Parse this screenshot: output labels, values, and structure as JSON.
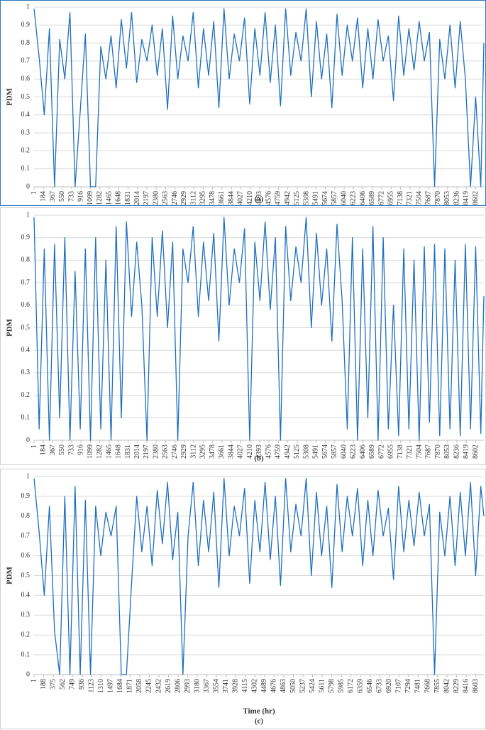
{
  "chart_data": [
    {
      "type": "line",
      "caption": "(a)",
      "ylabel": "PDM",
      "color": "#1f6fbf",
      "x": [
        1,
        100,
        200,
        300,
        400,
        500,
        600,
        700,
        800,
        900,
        1000,
        1100,
        1200,
        1300,
        1400,
        1500,
        1600,
        1700,
        1800,
        1900,
        2000,
        2100,
        2200,
        2300,
        2400,
        2500,
        2600,
        2700,
        2800,
        2900,
        3000,
        3100,
        3200,
        3300,
        3400,
        3500,
        3600,
        3700,
        3800,
        3900,
        4000,
        4100,
        4200,
        4300,
        4400,
        4500,
        4600,
        4700,
        4800,
        4900,
        5000,
        5100,
        5200,
        5300,
        5400,
        5500,
        5600,
        5700,
        5800,
        5900,
        6000,
        6100,
        6200,
        6300,
        6400,
        6500,
        6600,
        6700,
        6800,
        6900,
        7000,
        7100,
        7200,
        7300,
        7400,
        7500,
        7600,
        7700,
        7800,
        7900,
        8000,
        8100,
        8200,
        8300,
        8400,
        8500,
        8600,
        8700,
        8760
      ],
      "values": [
        0.99,
        0.72,
        0.4,
        0.88,
        0,
        0.82,
        0.6,
        0.97,
        0,
        0.42,
        0.85,
        0,
        0,
        0.78,
        0.6,
        0.84,
        0.55,
        0.93,
        0.66,
        0.97,
        0.58,
        0.82,
        0.7,
        0.9,
        0.62,
        0.88,
        0.43,
        0.95,
        0.6,
        0.84,
        0.7,
        0.97,
        0.55,
        0.88,
        0.62,
        0.92,
        0.44,
        0.99,
        0.6,
        0.85,
        0.7,
        0.94,
        0.46,
        0.88,
        0.62,
        0.97,
        0.58,
        0.9,
        0.45,
        0.99,
        0.62,
        0.86,
        0.7,
        0.99,
        0.5,
        0.92,
        0.6,
        0.85,
        0.44,
        0.96,
        0.62,
        0.9,
        0.7,
        0.94,
        0.55,
        0.88,
        0.6,
        0.93,
        0.7,
        0.84,
        0.48,
        0.95,
        0.62,
        0.88,
        0.65,
        0.92,
        0.7,
        0.86,
        0,
        0.82,
        0.6,
        0.9,
        0.55,
        0.92,
        0.6,
        0,
        0.5,
        0,
        0.8
      ],
      "xlim": [
        1,
        8760
      ],
      "ylim": [
        0,
        1
      ],
      "yticks": [
        0,
        0.1,
        0.2,
        0.3,
        0.4,
        0.5,
        0.6,
        0.7,
        0.8,
        0.9,
        1
      ],
      "xticks": [
        1,
        184,
        367,
        550,
        733,
        916,
        1099,
        1282,
        1465,
        1648,
        1831,
        2014,
        2197,
        2380,
        2563,
        2746,
        2929,
        3112,
        3295,
        3478,
        3661,
        3844,
        4027,
        4210,
        4393,
        4576,
        4759,
        4942,
        5125,
        5308,
        5491,
        5674,
        5857,
        6040,
        6223,
        6406,
        6589,
        6772,
        6955,
        7138,
        7321,
        7504,
        7687,
        7870,
        8053,
        8236,
        8419,
        8602
      ],
      "grid": true
    },
    {
      "type": "line",
      "caption": "(b)",
      "ylabel": "PDM",
      "color": "#1f6fbf",
      "x": [
        1,
        100,
        200,
        300,
        400,
        500,
        600,
        700,
        800,
        900,
        1000,
        1100,
        1200,
        1300,
        1400,
        1500,
        1600,
        1700,
        1800,
        1900,
        2000,
        2100,
        2200,
        2300,
        2400,
        2500,
        2600,
        2700,
        2800,
        2900,
        3000,
        3100,
        3200,
        3300,
        3400,
        3500,
        3600,
        3700,
        3800,
        3900,
        4000,
        4100,
        4200,
        4300,
        4400,
        4500,
        4600,
        4700,
        4800,
        4900,
        5000,
        5100,
        5200,
        5300,
        5400,
        5500,
        5600,
        5700,
        5800,
        5900,
        6000,
        6100,
        6200,
        6300,
        6400,
        6500,
        6600,
        6700,
        6800,
        6900,
        7000,
        7100,
        7200,
        7300,
        7400,
        7500,
        7600,
        7700,
        7800,
        7900,
        8000,
        8100,
        8200,
        8300,
        8400,
        8500,
        8600,
        8700,
        8760
      ],
      "values": [
        0.99,
        0.05,
        0.85,
        0,
        0.87,
        0.1,
        0.9,
        0,
        0.75,
        0.05,
        0.85,
        0,
        0.9,
        0.05,
        0.8,
        0,
        0.95,
        0.1,
        0.97,
        0.55,
        0.88,
        0.6,
        0,
        0.9,
        0.55,
        0.93,
        0.5,
        0.88,
        0,
        0.85,
        0.7,
        0.95,
        0.55,
        0.88,
        0.62,
        0.92,
        0.44,
        0.99,
        0.6,
        0.85,
        0.7,
        0.94,
        0,
        0.88,
        0.62,
        0.97,
        0.58,
        0.9,
        0,
        0.95,
        0.62,
        0.86,
        0.7,
        0.99,
        0.5,
        0.92,
        0.6,
        0.85,
        0.44,
        0.96,
        0.62,
        0.05,
        0.9,
        0,
        0.85,
        0.1,
        0.95,
        0,
        0.9,
        0.05,
        0.6,
        0.02,
        0.85,
        0.05,
        0.8,
        0,
        0.86,
        0.08,
        0.87,
        0.02,
        0.85,
        0.05,
        0.8,
        0.02,
        0.87,
        0.05,
        0.86,
        0.03,
        0.64
      ],
      "xlim": [
        1,
        8760
      ],
      "ylim": [
        0,
        1
      ],
      "yticks": [
        0,
        0.1,
        0.2,
        0.3,
        0.4,
        0.5,
        0.6,
        0.7,
        0.8,
        0.9,
        1
      ],
      "xticks": [
        1,
        184,
        367,
        550,
        733,
        916,
        1099,
        1282,
        1465,
        1648,
        1831,
        2014,
        2197,
        2380,
        2563,
        2746,
        2929,
        3112,
        3295,
        3478,
        3661,
        3844,
        4027,
        4210,
        4393,
        4576,
        4759,
        4942,
        5125,
        5308,
        5491,
        5674,
        5857,
        6040,
        6223,
        6406,
        6589,
        6772,
        6955,
        7138,
        7321,
        7504,
        7687,
        7870,
        8053,
        8236,
        8419,
        8602
      ],
      "grid": true
    },
    {
      "type": "line",
      "caption": "(c)",
      "ylabel": "PDM",
      "xlabel": "Time (hr)",
      "color": "#1f6fbf",
      "x": [
        1,
        100,
        200,
        300,
        400,
        500,
        600,
        700,
        800,
        900,
        1000,
        1100,
        1200,
        1300,
        1400,
        1500,
        1600,
        1700,
        1800,
        1900,
        2000,
        2100,
        2200,
        2300,
        2400,
        2500,
        2600,
        2700,
        2800,
        2900,
        3000,
        3100,
        3200,
        3300,
        3400,
        3500,
        3600,
        3700,
        3800,
        3900,
        4000,
        4100,
        4200,
        4300,
        4400,
        4500,
        4600,
        4700,
        4800,
        4900,
        5000,
        5100,
        5200,
        5300,
        5400,
        5500,
        5600,
        5700,
        5800,
        5900,
        6000,
        6100,
        6200,
        6300,
        6400,
        6500,
        6600,
        6700,
        6800,
        6900,
        7000,
        7100,
        7200,
        7300,
        7400,
        7500,
        7600,
        7700,
        7800,
        7900,
        8000,
        8100,
        8200,
        8300,
        8400,
        8500,
        8600,
        8700,
        8760
      ],
      "values": [
        0.99,
        0.72,
        0.4,
        0.85,
        0.22,
        0,
        0.9,
        0,
        0.95,
        0,
        0.88,
        0,
        0.85,
        0.6,
        0.82,
        0.7,
        0.85,
        0,
        0,
        0.46,
        0.9,
        0.62,
        0.85,
        0.55,
        0.93,
        0.66,
        0.97,
        0.58,
        0.82,
        0,
        0.7,
        0.97,
        0.55,
        0.88,
        0.62,
        0.92,
        0.44,
        0.99,
        0.6,
        0.85,
        0.7,
        0.94,
        0.46,
        0.88,
        0.62,
        0.97,
        0.58,
        0.9,
        0.45,
        0.99,
        0.62,
        0.86,
        0.7,
        0.99,
        0.5,
        0.92,
        0.6,
        0.85,
        0.44,
        0.96,
        0.62,
        0.9,
        0.7,
        0.94,
        0.55,
        0.88,
        0.6,
        0.93,
        0.7,
        0.84,
        0.48,
        0.95,
        0.62,
        0.88,
        0.65,
        0.92,
        0.7,
        0.86,
        0,
        0.82,
        0.6,
        0.9,
        0.55,
        0.92,
        0.6,
        0.97,
        0.5,
        0.95,
        0.8
      ],
      "xlim": [
        1,
        8760
      ],
      "ylim": [
        0,
        1
      ],
      "yticks": [
        0,
        0.1,
        0.2,
        0.3,
        0.4,
        0.5,
        0.6,
        0.7,
        0.8,
        0.9,
        1
      ],
      "xticks": [
        1,
        188,
        375,
        562,
        749,
        936,
        1123,
        1310,
        1497,
        1684,
        1871,
        2058,
        2245,
        2432,
        2619,
        2806,
        2993,
        3180,
        3367,
        3554,
        3741,
        3928,
        4115,
        4302,
        4489,
        4676,
        4863,
        5050,
        5237,
        5424,
        5611,
        5798,
        5985,
        6172,
        6359,
        6546,
        6733,
        6920,
        7107,
        7294,
        7481,
        7668,
        7855,
        8042,
        8229,
        8416,
        8603
      ],
      "grid": true
    }
  ]
}
